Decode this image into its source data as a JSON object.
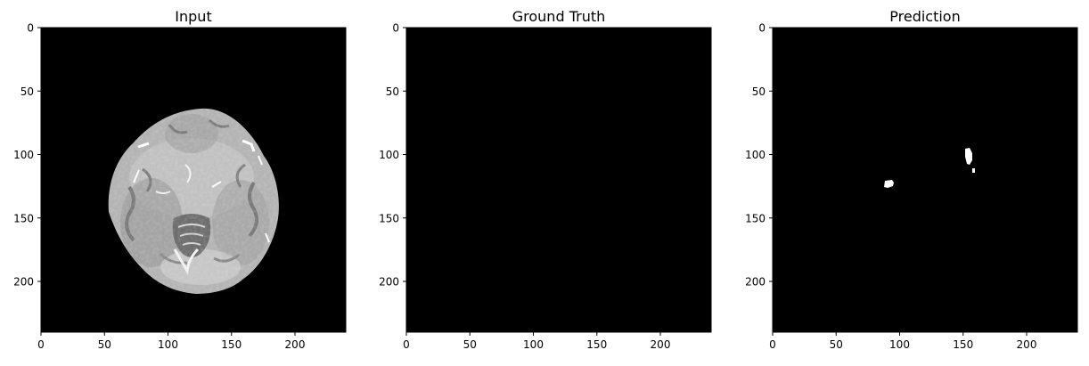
{
  "panels": [
    {
      "id": "input",
      "title": "Input",
      "content": "brain-mri-slice"
    },
    {
      "id": "ground-truth",
      "title": "Ground Truth",
      "content": "empty-mask"
    },
    {
      "id": "prediction",
      "title": "Prediction",
      "content": "predicted-mask"
    }
  ],
  "axes": {
    "x_ticks": [
      "0",
      "50",
      "100",
      "150",
      "200"
    ],
    "y_ticks": [
      "0",
      "50",
      "100",
      "150",
      "200"
    ],
    "range": [
      0,
      240
    ]
  },
  "colors": {
    "background": "#ffffff",
    "image_background": "#000000",
    "mask": "#ffffff",
    "tick_text": "#000000"
  }
}
